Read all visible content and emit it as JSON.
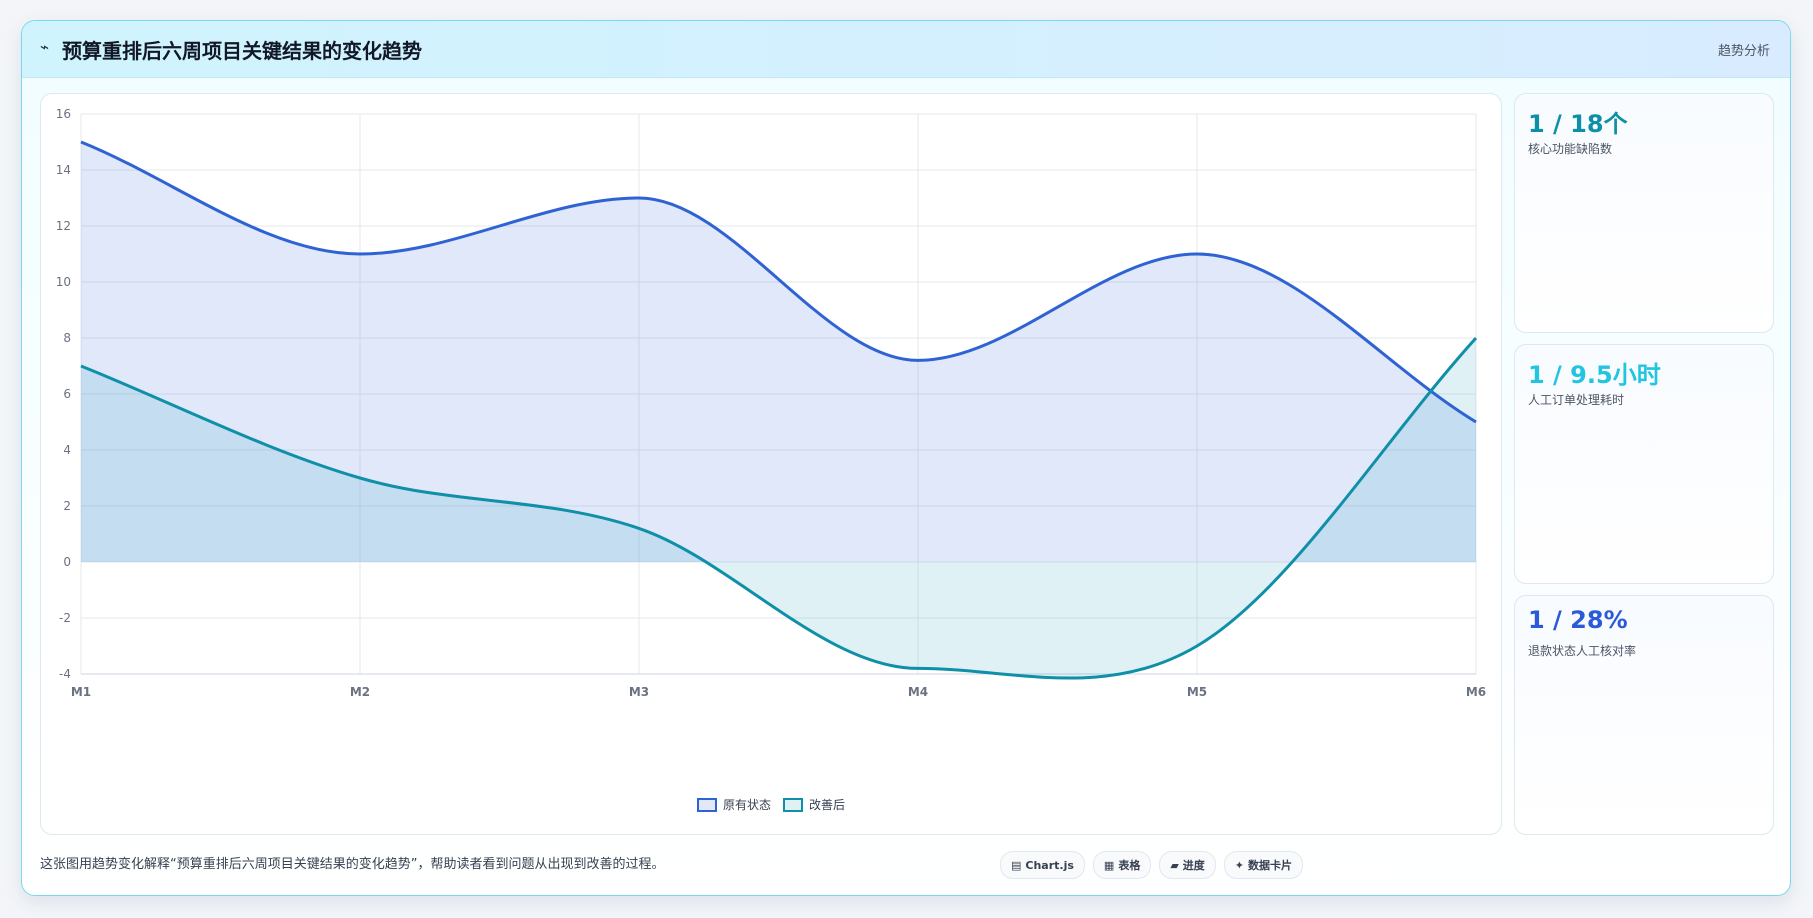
{
  "header": {
    "icon": "chart-line-icon",
    "icon_glyph": "⌁",
    "title": "预算重排后六周项目关键结果的变化趋势",
    "tag": "趋势分析"
  },
  "chart_data": {
    "type": "line",
    "categories": [
      "M1",
      "M2",
      "M3",
      "M4",
      "M5",
      "M6"
    ],
    "ylim": [
      -4,
      16
    ],
    "yticks": [
      -4,
      -2,
      0,
      2,
      4,
      6,
      8,
      10,
      12,
      14,
      16
    ],
    "grid": true,
    "fill": true,
    "smooth": true,
    "legend_position": "bottom",
    "series": [
      {
        "name": "原有状态",
        "values": [
          15,
          11,
          13,
          7.2,
          11,
          5
        ],
        "color": "#2f63d3",
        "fill": "rgba(102,140,230,0.20)"
      },
      {
        "name": "改善后",
        "values": [
          7,
          3,
          1.2,
          -3.8,
          -3,
          8
        ],
        "color": "#0f8fa8",
        "fill": "rgba(56,170,190,0.16)"
      }
    ]
  },
  "stats": [
    {
      "value": "1 / 18个",
      "label": "核心功能缺陷数",
      "color": "#0e8fa8"
    },
    {
      "value": "1 / 9.5小时",
      "label": "人工订单处理耗时",
      "color": "#22c4e0"
    },
    {
      "value": "1 / 28%",
      "label": "退款状态人工核对率",
      "color": "#2a5ad8"
    }
  ],
  "footer": {
    "description": "这张图用趋势变化解释“预算重排后六周项目关键结果的变化趋势”，帮助读者看到问题从出现到改善的过程。",
    "chips": [
      {
        "icon": "chart-icon",
        "glyph": "▤",
        "label": "Chart.js"
      },
      {
        "icon": "table-icon",
        "glyph": "▦",
        "label": "表格"
      },
      {
        "icon": "progress-icon",
        "glyph": "▰",
        "label": "进度"
      },
      {
        "icon": "card-icon",
        "glyph": "✦",
        "label": "数据卡片"
      }
    ]
  }
}
